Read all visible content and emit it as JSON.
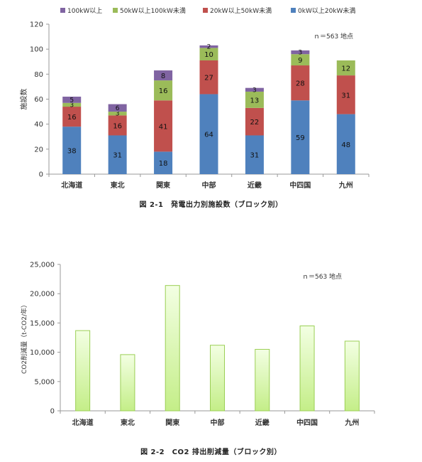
{
  "chart_data": [
    {
      "type": "bar",
      "stacked": true,
      "categories": [
        "北海道",
        "東北",
        "関東",
        "中部",
        "近畿",
        "中四国",
        "九州"
      ],
      "series": [
        {
          "name": "0kW以上20kW未満",
          "color": "#4f81bd",
          "values": [
            38,
            31,
            18,
            64,
            31,
            59,
            48
          ]
        },
        {
          "name": "20kW以上50kW未満",
          "color": "#c0504d",
          "values": [
            16,
            16,
            41,
            27,
            22,
            28,
            31
          ]
        },
        {
          "name": "50kW以上100kW未満",
          "color": "#9bbb59",
          "values": [
            3,
            3,
            16,
            10,
            13,
            9,
            12
          ]
        },
        {
          "name": "100kW以上",
          "color": "#8064a2",
          "values": [
            5,
            6,
            8,
            2,
            3,
            3,
            0
          ]
        }
      ],
      "legend_order": [
        3,
        2,
        1,
        0
      ],
      "legend": "top",
      "ylabel": "施設数",
      "yticks": [
        0,
        20,
        40,
        60,
        80,
        100,
        120
      ],
      "ylim": [
        0,
        120
      ],
      "annotation": "ｎ＝563 地点",
      "caption": "図 2-1　発電出力別施設数（ブロック別）",
      "grid": false
    },
    {
      "type": "bar",
      "categories": [
        "北海道",
        "東北",
        "関東",
        "中部",
        "近畿",
        "中四国",
        "九州"
      ],
      "values": [
        13700,
        9600,
        21400,
        11200,
        10500,
        14500,
        11900
      ],
      "bar_color_top": "#f3ffe3",
      "bar_color_bottom": "#c4ee88",
      "bar_stroke": "#9bcf55",
      "ylabel": "CO2削減量（t-CO2/年）",
      "yticks": [
        "0",
        "5,000",
        "10,000",
        "15,000",
        "20,000",
        "25,000"
      ],
      "ylim": [
        0,
        25000
      ],
      "annotation": "ｎ＝563 地点",
      "caption": "図 2-2　CO2 排出削減量（ブロック別）",
      "grid": false
    }
  ]
}
